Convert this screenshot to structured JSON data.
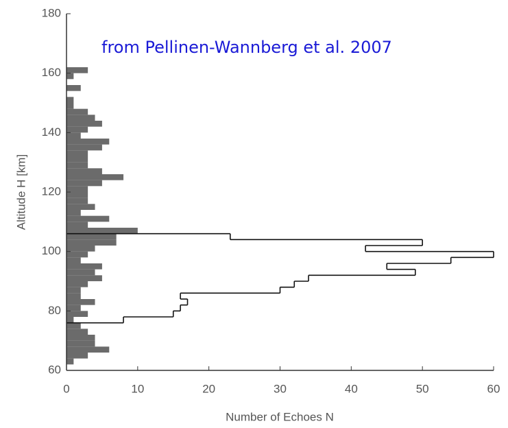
{
  "chart_data": {
    "type": "histogram",
    "orientation": "horizontal",
    "annotation": "from Pellinen-Wannberg  et al. 2007",
    "xlabel": "Number of Echoes N",
    "ylabel": "Altitude H [km]",
    "xlim": [
      0,
      60
    ],
    "xticks": [
      0,
      10,
      20,
      30,
      40,
      50,
      60
    ],
    "ylim": [
      60,
      180
    ],
    "yticks": [
      60,
      80,
      100,
      120,
      140,
      160,
      180
    ],
    "bins": [
      62,
      64,
      66,
      68,
      70,
      72,
      74,
      76,
      78,
      80,
      82,
      84,
      86,
      88,
      90,
      92,
      94,
      96,
      98,
      100,
      102,
      104,
      106,
      108,
      110,
      112,
      114,
      116,
      118,
      120,
      122,
      124,
      126,
      128,
      130,
      132,
      134,
      136,
      138,
      140,
      142,
      144,
      146,
      148,
      150,
      152,
      154,
      156,
      158,
      160,
      162
    ],
    "values": [
      1,
      3,
      6,
      4,
      4,
      3,
      2,
      1,
      3,
      2,
      4,
      2,
      2,
      3,
      5,
      4,
      5,
      2,
      3,
      4,
      7,
      7,
      10,
      3,
      6,
      2,
      4,
      3,
      3,
      3,
      5,
      8,
      5,
      3,
      3,
      3,
      5,
      6,
      2,
      3,
      5,
      4,
      3,
      1,
      1,
      0,
      2,
      0,
      1,
      3
    ],
    "color": "#6b6b6b",
    "overlay": {
      "bins": [
        76,
        78,
        80,
        82,
        84,
        86,
        88,
        90,
        92,
        94,
        96,
        98,
        100,
        102,
        104,
        106
      ],
      "values": [
        8,
        15,
        16,
        17,
        16,
        30,
        32,
        34,
        49,
        45,
        54,
        60,
        42,
        50,
        23
      ],
      "color": "#111111"
    }
  }
}
